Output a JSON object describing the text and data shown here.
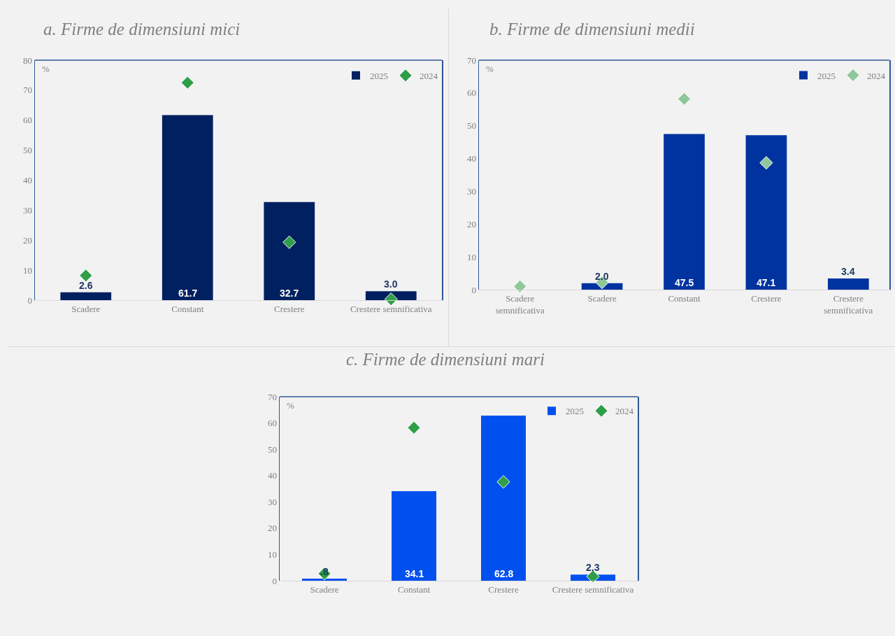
{
  "chart_data": [
    {
      "type": "bar",
      "title": "a.   Firme de dimensiuni mici",
      "ylabel": "%",
      "categories": [
        "Scadere",
        "Constant",
        "Crestere",
        "Crestere semnificativa"
      ],
      "ylim": [
        0,
        80
      ],
      "yticks": [
        0,
        10,
        20,
        30,
        40,
        50,
        60,
        70,
        80
      ],
      "grid": false,
      "legend": "top right",
      "series": [
        {
          "name": "2025",
          "color": "#002060",
          "values": [
            2.6,
            61.7,
            32.7,
            3.0
          ],
          "value_labels": [
            "2.6",
            "61.7",
            "32.7",
            "3.0"
          ]
        },
        {
          "name": "2024",
          "type": "scatter",
          "marker": "diamond",
          "color": "#2e9e48",
          "values": [
            8.2,
            72.5,
            19.3,
            0.3
          ]
        }
      ]
    },
    {
      "type": "bar",
      "title": "b.   Firme de dimensiuni medii",
      "ylabel": "%",
      "categories": [
        "Scadere semnificativa",
        "Scadere",
        "Constant",
        "Crestere",
        "Crestere semnificativa"
      ],
      "ylim": [
        0,
        70
      ],
      "yticks": [
        0,
        10,
        20,
        30,
        40,
        50,
        60,
        70
      ],
      "grid": false,
      "legend": "top right",
      "series": [
        {
          "name": "2025",
          "color": "#0033a0",
          "values": [
            null,
            2.0,
            47.5,
            47.1,
            3.4
          ],
          "value_labels": [
            null,
            "2.0",
            "47.5",
            "47.1",
            "3.4"
          ]
        },
        {
          "name": "2024",
          "type": "scatter",
          "marker": "diamond",
          "color": "#8fc79a",
          "values": [
            1.0,
            2.2,
            58.2,
            38.7,
            null
          ]
        }
      ]
    },
    {
      "type": "bar",
      "title": "c.   Firme de dimensiuni mari",
      "ylabel": "%",
      "categories": [
        "Scadere",
        "Constant",
        "Crestere",
        "Crestere semnificativa"
      ],
      "ylim": [
        0,
        70
      ],
      "yticks": [
        0,
        10,
        20,
        30,
        40,
        50,
        60,
        70
      ],
      "grid": false,
      "legend": "top right",
      "series": [
        {
          "name": "2025",
          "color": "#0050f0",
          "values": [
            0.8,
            34.1,
            62.8,
            2.3
          ],
          "value_labels": [
            ".8",
            "34.1",
            "62.8",
            "2.3"
          ]
        },
        {
          "name": "2024",
          "type": "scatter",
          "marker": "diamond",
          "color": "#2e9e48",
          "values": [
            2.7,
            58.2,
            37.6,
            1.6
          ]
        }
      ]
    }
  ]
}
